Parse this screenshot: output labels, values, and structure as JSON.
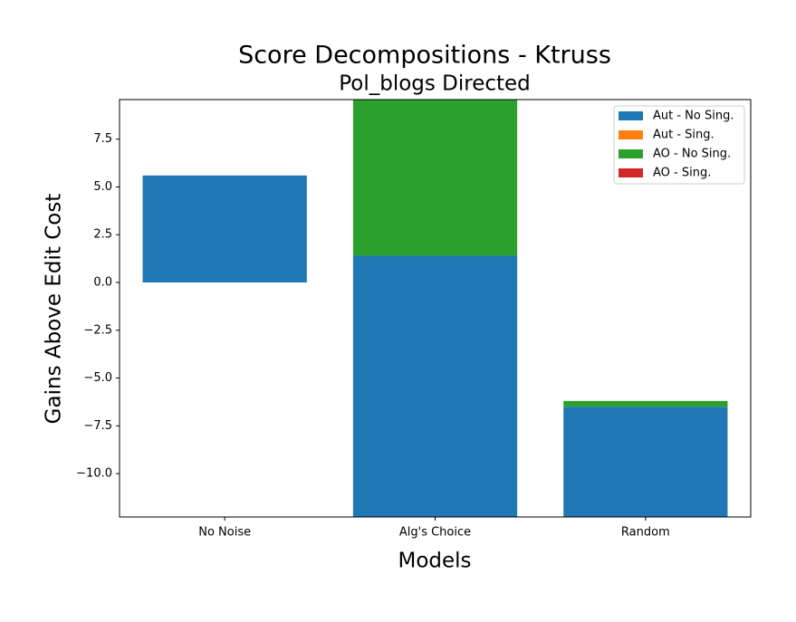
{
  "chart_data": {
    "type": "floating-bar",
    "title": "Score Decompositions - Ktruss",
    "subtitle": "Pol_blogs Directed",
    "xlabel": "Models",
    "ylabel": "Gains Above Edit Cost",
    "categories": [
      "No Noise",
      "Alg's Choice",
      "Random"
    ],
    "series": [
      {
        "name": "Aut - No Sing.",
        "color": "#1f77b4",
        "values": [
          [
            0,
            5.6
          ],
          [
            -13,
            1.4
          ],
          [
            -13,
            -6.5
          ]
        ]
      },
      {
        "name": "Aut - Sing.",
        "color": "#ff7f0e",
        "values": [
          null,
          null,
          null
        ]
      },
      {
        "name": "AO - No Sing.",
        "color": "#2ca02c",
        "values": [
          null,
          [
            1.4,
            10
          ],
          [
            -6.5,
            -6.2
          ]
        ]
      },
      {
        "name": "AO - Sing.",
        "color": "#d62728",
        "values": [
          null,
          null,
          null
        ]
      }
    ],
    "ylim": [
      -12.27,
      9.57
    ],
    "yticks": [
      {
        "value": -10,
        "label": "−10.0"
      },
      {
        "value": -7.5,
        "label": "−7.5"
      },
      {
        "value": -5,
        "label": "−5.0"
      },
      {
        "value": -2.5,
        "label": "−2.5"
      },
      {
        "value": 0,
        "label": "0.0"
      },
      {
        "value": 2.5,
        "label": "2.5"
      },
      {
        "value": 5,
        "label": "5.0"
      },
      {
        "value": 7.5,
        "label": "7.5"
      }
    ],
    "legend": "upper right"
  }
}
